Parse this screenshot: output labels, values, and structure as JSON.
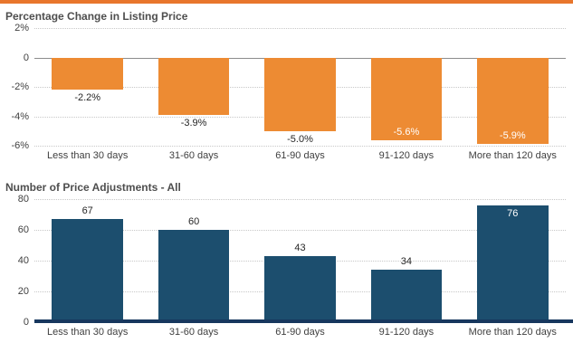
{
  "page": {
    "accent_color": "#e8762c",
    "background_color": "#ffffff"
  },
  "chart_data": [
    {
      "type": "bar",
      "title": "Percentage Change in Listing Price",
      "categories": [
        "Less than 30 days",
        "31-60 days",
        "61-90 days",
        "91-120 days",
        "More than 120 days"
      ],
      "values": [
        -2.2,
        -3.9,
        -5.0,
        -5.6,
        -5.9
      ],
      "value_labels": [
        "-2.2%",
        "-3.9%",
        "-5.0%",
        "-5.6%",
        "-5.9%"
      ],
      "label_inside": [
        false,
        false,
        false,
        true,
        true
      ],
      "ylim": [
        -6,
        2
      ],
      "yticks": [
        2,
        0,
        -2,
        -4,
        -6
      ],
      "ytick_labels": [
        "2%",
        "0",
        "-2%",
        "-4%",
        "-6%"
      ],
      "xlabel": "",
      "ylabel": "",
      "grid": true,
      "legend": false,
      "bar_color": "#ed8b33"
    },
    {
      "type": "bar",
      "title": "Number of Price Adjustments - All",
      "categories": [
        "Less than 30 days",
        "31-60 days",
        "61-90 days",
        "91-120 days",
        "More than 120 days"
      ],
      "values": [
        67,
        60,
        43,
        34,
        76
      ],
      "value_labels": [
        "67",
        "60",
        "43",
        "34",
        "76"
      ],
      "label_inside": [
        false,
        false,
        false,
        false,
        true
      ],
      "ylim": [
        0,
        80
      ],
      "yticks": [
        80,
        60,
        40,
        20,
        0
      ],
      "ytick_labels": [
        "80",
        "60",
        "40",
        "20",
        "0"
      ],
      "xlabel": "",
      "ylabel": "",
      "grid": true,
      "legend": false,
      "bar_color": "#1c4e6e",
      "baseline_color": "#17375e"
    }
  ]
}
